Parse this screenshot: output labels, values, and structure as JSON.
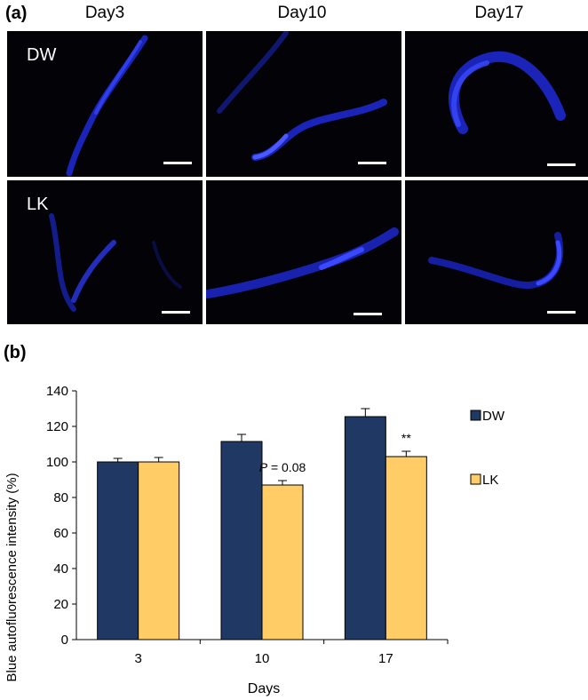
{
  "panel_a": {
    "label": "(a)",
    "columns": [
      "Day3",
      "Day10",
      "Day17"
    ],
    "rows": [
      "DW",
      "LK"
    ],
    "fluorescence_color": "#2f3cff",
    "background_color": "#020207"
  },
  "panel_b": {
    "label": "(b)"
  },
  "chart_data": {
    "type": "bar",
    "categories": [
      "3",
      "10",
      "17"
    ],
    "series": [
      {
        "name": "DW",
        "values": [
          100,
          111.5,
          125.5
        ],
        "errors": [
          2,
          4,
          4.5
        ],
        "color": "#1f3864"
      },
      {
        "name": "LK",
        "values": [
          100,
          87,
          103
        ],
        "errors": [
          2.5,
          2.5,
          3
        ],
        "color": "#ffcc66"
      }
    ],
    "ylabel": "Blue autofluorescence intensity (%)",
    "xlabel": "Days",
    "ylim": [
      0,
      140
    ],
    "yticks": [
      "0",
      "20",
      "40",
      "60",
      "80",
      "100",
      "120",
      "140"
    ],
    "annotations": [
      {
        "category": "10",
        "series": "LK",
        "text_italic": "P",
        "text": " = 0.08"
      },
      {
        "category": "17",
        "series": "LK",
        "text": "**"
      }
    ],
    "legend_position": "right",
    "grid": false
  }
}
